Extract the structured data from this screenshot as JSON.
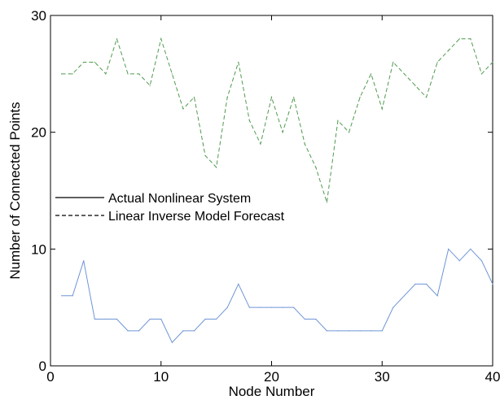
{
  "chart_data": {
    "type": "line",
    "xlabel": "Node Number",
    "ylabel": "Number of Connected Points",
    "xlim": [
      0,
      40
    ],
    "ylim": [
      0,
      30
    ],
    "xticks": [
      0,
      10,
      20,
      30,
      40
    ],
    "yticks": [
      0,
      10,
      20,
      30
    ],
    "grid": false,
    "legend_position": "middle-left",
    "x": [
      1,
      2,
      3,
      4,
      5,
      6,
      7,
      8,
      9,
      10,
      11,
      12,
      13,
      14,
      15,
      16,
      17,
      18,
      19,
      20,
      21,
      22,
      23,
      24,
      25,
      26,
      27,
      28,
      29,
      30,
      31,
      32,
      33,
      34,
      35,
      36,
      37,
      38,
      39,
      40
    ],
    "series": [
      {
        "name": "Actual Nonlinear System",
        "color": "#6e95d6",
        "line_style": "solid",
        "legend_line_style": "solid",
        "values": [
          6,
          6,
          9,
          4,
          4,
          4,
          3,
          3,
          4,
          4,
          2,
          3,
          3,
          4,
          4,
          5,
          7,
          5,
          5,
          5,
          5,
          5,
          4,
          4,
          3,
          3,
          3,
          3,
          3,
          3,
          5,
          6,
          7,
          7,
          6,
          10,
          9,
          10,
          9,
          7
        ]
      },
      {
        "name": "Linear Inverse Model Forecast",
        "color": "#4f9a4f",
        "line_style": "dashed",
        "legend_line_style": "dashed",
        "values": [
          25,
          25,
          26,
          26,
          25,
          28,
          25,
          25,
          24,
          28,
          25,
          22,
          23,
          18,
          17,
          23,
          26,
          21,
          19,
          23,
          20,
          23,
          19,
          17,
          14,
          21,
          20,
          23,
          25,
          22,
          26,
          25,
          24,
          23,
          26,
          27,
          28,
          28,
          25,
          26
        ]
      }
    ]
  }
}
